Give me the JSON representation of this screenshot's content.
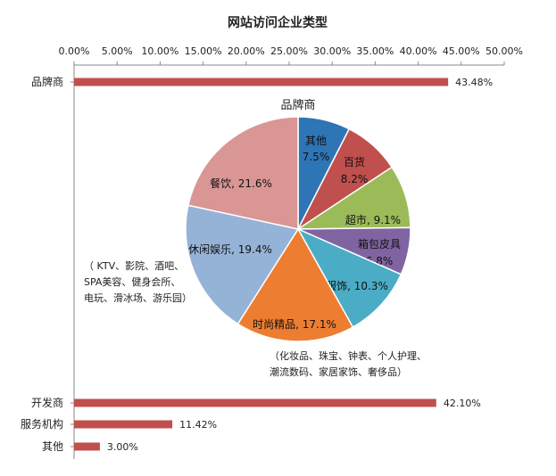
{
  "chart_data": [
    {
      "type": "bar",
      "orientation": "horizontal",
      "title": "网站访问企业类型",
      "categories": [
        "品牌商",
        "开发商",
        "服务机构",
        "其他"
      ],
      "values": [
        43.48,
        42.1,
        11.42,
        3.0
      ],
      "value_labels": [
        "43.48%",
        "42.10%",
        "11.42%",
        "3.00%"
      ],
      "xlim": [
        0,
        50
      ],
      "x_ticks": [
        "0.00%",
        "5.00%",
        "10.00%",
        "15.00%",
        "20.00%",
        "25.00%",
        "30.00%",
        "35.00%",
        "40.00%",
        "45.00%",
        "50.00%"
      ],
      "axis_position": "top",
      "grid": false,
      "colors": {
        "bar": "#c0504d"
      }
    },
    {
      "type": "pie",
      "title": "品牌商",
      "slices": [
        {
          "label": "其他",
          "value": 7.5,
          "value_label": "7.5%",
          "color": "#2e75b6"
        },
        {
          "label": "百货",
          "value": 8.2,
          "value_label": "8.2%",
          "color": "#c0504d"
        },
        {
          "label": "超市",
          "value": 9.1,
          "value_label": "9.1%",
          "color": "#9bbb59"
        },
        {
          "label": "箱包皮具",
          "value": 6.8,
          "value_label": "6.8%",
          "color": "#8064a2"
        },
        {
          "label": "服饰",
          "value": 10.3,
          "value_label": "10.3%",
          "color": "#4bacc6"
        },
        {
          "label": "时尚精品",
          "value": 17.1,
          "value_label": "17.1%",
          "color": "#ed7d31"
        },
        {
          "label": "休闲娱乐",
          "value": 19.4,
          "value_label": "19.4%",
          "color": "#95b3d7"
        },
        {
          "label": "餐饮",
          "value": 21.6,
          "value_label": "21.6%",
          "color": "#d99694"
        }
      ],
      "annotations": [
        {
          "lines": [
            "（ KTV、影院、酒吧、",
            "SPA美容、健身会所、",
            "电玩、滑冰场、游乐园）"
          ]
        },
        {
          "lines": [
            "（化妆品、珠宝、钟表、个人护理、",
            "潮流数码、家居家饰、奢侈品）"
          ]
        }
      ]
    }
  ]
}
